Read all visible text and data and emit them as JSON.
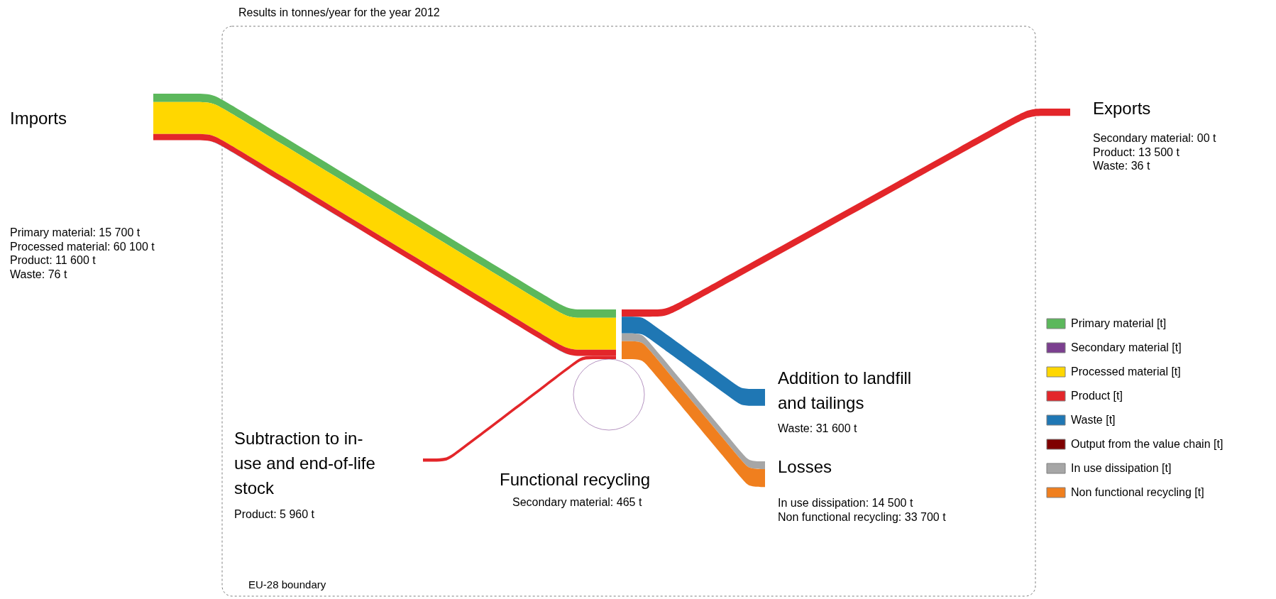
{
  "chart_data": {
    "type": "other",
    "title": "Results in tonnes/year for the year 2012",
    "annotations": [
      "EU-28 boundary"
    ],
    "categories": [
      "Imports",
      "Exports",
      "Addition to landfill and tailings",
      "Losses",
      "Subtraction to in-use and end-of-life stock",
      "Functional recycling"
    ],
    "series": [
      {
        "name": "Primary material [t]",
        "color": "#5cb85c",
        "values": [
          15700,
          null,
          null,
          null,
          null,
          null
        ],
        "value_labels": [
          "Primary material: 15 700 t",
          null,
          null,
          null,
          null,
          null
        ]
      },
      {
        "name": "Secondary material [t]",
        "color": "#7b3f8f",
        "values": [
          null,
          0,
          null,
          null,
          null,
          465
        ],
        "value_labels": [
          null,
          "Secondary material: 00 t",
          null,
          null,
          null,
          "Secondary material: 465 t"
        ]
      },
      {
        "name": "Processed material [t]",
        "color": "#ffd700",
        "values": [
          60100,
          null,
          null,
          null,
          null,
          null
        ],
        "value_labels": [
          "Processed material: 60 100 t",
          null,
          null,
          null,
          null,
          null
        ]
      },
      {
        "name": "Product [t]",
        "color": "#e3262a",
        "values": [
          11600,
          13500,
          null,
          null,
          5960,
          null
        ],
        "value_labels": [
          "Product: 11 600 t",
          "Product: 13 500 t",
          null,
          null,
          "Product: 5 960 t",
          null
        ]
      },
      {
        "name": "Waste [t]",
        "color": "#1f77b4",
        "values": [
          76,
          36,
          31600,
          null,
          null,
          null
        ],
        "value_labels": [
          "Waste: 76 t",
          "Waste: 36 t",
          "Waste: 31 600 t",
          null,
          null,
          null
        ]
      },
      {
        "name": "Output from the value chain [t]",
        "color": "#7f0000",
        "values": [
          null,
          null,
          null,
          null,
          null,
          null
        ],
        "value_labels": [
          null,
          null,
          null,
          null,
          null,
          null
        ]
      },
      {
        "name": "In use dissipation [t]",
        "color": "#a6a6a6",
        "values": [
          null,
          null,
          null,
          14500,
          null,
          null
        ],
        "value_labels": [
          null,
          null,
          null,
          "In use dissipation: 14 500 t",
          null,
          null
        ]
      },
      {
        "name": "Non functional recycling [t]",
        "color": "#f07f1e",
        "values": [
          null,
          null,
          null,
          33700,
          null,
          null
        ],
        "value_labels": [
          null,
          null,
          null,
          "Non functional recycling: 33 700 t",
          null,
          null
        ]
      }
    ],
    "legend": "right"
  }
}
